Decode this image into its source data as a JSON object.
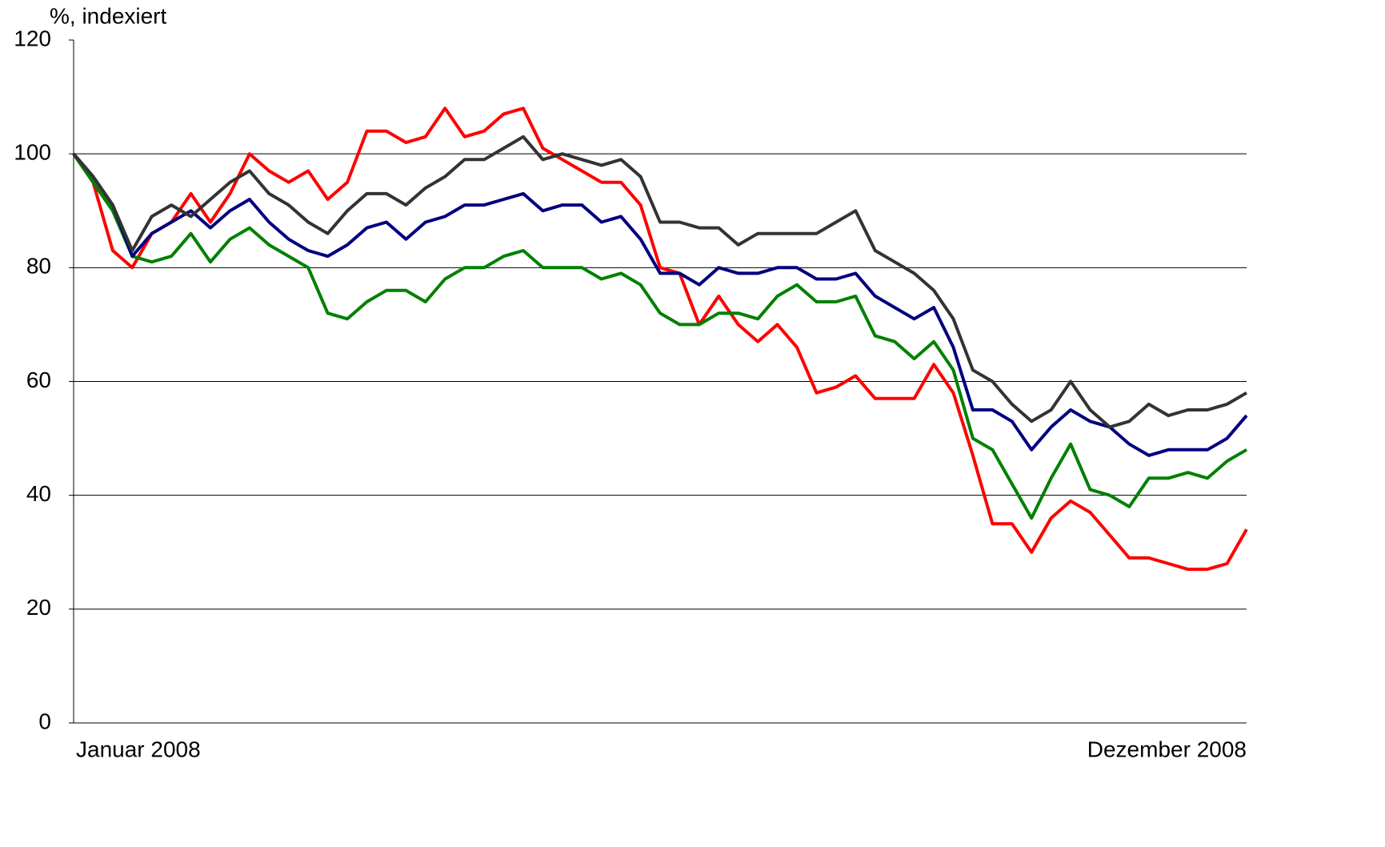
{
  "chart_data": {
    "type": "line",
    "y_label": "%, indexiert",
    "categories": [
      "Januar 2008",
      null,
      null,
      null,
      null,
      null,
      null,
      null,
      null,
      null,
      null,
      null,
      null,
      null,
      null,
      null,
      null,
      null,
      null,
      null,
      null,
      null,
      null,
      null,
      null,
      null,
      null,
      null,
      null,
      null,
      null,
      null,
      null,
      null,
      null,
      null,
      null,
      null,
      null,
      null,
      null,
      null,
      null,
      null,
      null,
      null,
      null,
      null,
      null,
      null,
      null,
      null,
      null,
      null,
      null,
      null,
      null,
      null,
      null,
      null,
      "Dezember 2008"
    ],
    "series": [
      {
        "color": "#ff0000",
        "values": [
          100,
          95,
          83,
          80,
          86,
          88,
          93,
          88,
          93,
          100,
          97,
          95,
          97,
          92,
          95,
          104,
          104,
          102,
          103,
          108,
          103,
          104,
          107,
          108,
          101,
          99,
          97,
          95,
          95,
          91,
          80,
          79,
          70,
          75,
          70,
          67,
          70,
          66,
          58,
          59,
          61,
          57,
          57,
          57,
          63,
          58,
          47,
          35,
          35,
          30,
          36,
          39,
          37,
          33,
          29,
          29,
          28,
          27,
          27,
          28,
          34
        ]
      },
      {
        "color": "#008000",
        "values": [
          100,
          95,
          90,
          82,
          81,
          82,
          86,
          81,
          85,
          87,
          84,
          82,
          80,
          72,
          71,
          74,
          76,
          76,
          74,
          78,
          80,
          80,
          82,
          83,
          80,
          80,
          80,
          78,
          79,
          77,
          72,
          70,
          70,
          72,
          72,
          71,
          75,
          77,
          74,
          74,
          75,
          68,
          67,
          64,
          67,
          62,
          50,
          48,
          42,
          36,
          43,
          49,
          41,
          40,
          38,
          43,
          43,
          44,
          43,
          46,
          48
        ]
      },
      {
        "color": "#000080",
        "values": [
          100,
          96,
          91,
          82,
          86,
          88,
          90,
          87,
          90,
          92,
          88,
          85,
          83,
          82,
          84,
          87,
          88,
          85,
          88,
          89,
          91,
          91,
          92,
          93,
          90,
          91,
          91,
          88,
          89,
          85,
          79,
          79,
          77,
          80,
          79,
          79,
          80,
          80,
          78,
          78,
          79,
          75,
          73,
          71,
          73,
          66,
          55,
          55,
          53,
          48,
          52,
          55,
          53,
          52,
          49,
          47,
          48,
          48,
          48,
          50,
          54
        ]
      },
      {
        "color": "#333333",
        "values": [
          100,
          96,
          91,
          83,
          89,
          91,
          89,
          92,
          95,
          97,
          93,
          91,
          88,
          86,
          90,
          93,
          93,
          91,
          94,
          96,
          99,
          99,
          101,
          103,
          99,
          100,
          99,
          98,
          99,
          96,
          88,
          88,
          87,
          87,
          84,
          86,
          86,
          86,
          86,
          88,
          90,
          83,
          81,
          79,
          76,
          71,
          62,
          60,
          56,
          53,
          55,
          60,
          55,
          52,
          53,
          56,
          54,
          55,
          55,
          56,
          58
        ]
      }
    ],
    "ylim": [
      0,
      120
    ],
    "yticks": [
      0,
      20,
      40,
      60,
      80,
      100,
      120
    ],
    "grid": true
  }
}
